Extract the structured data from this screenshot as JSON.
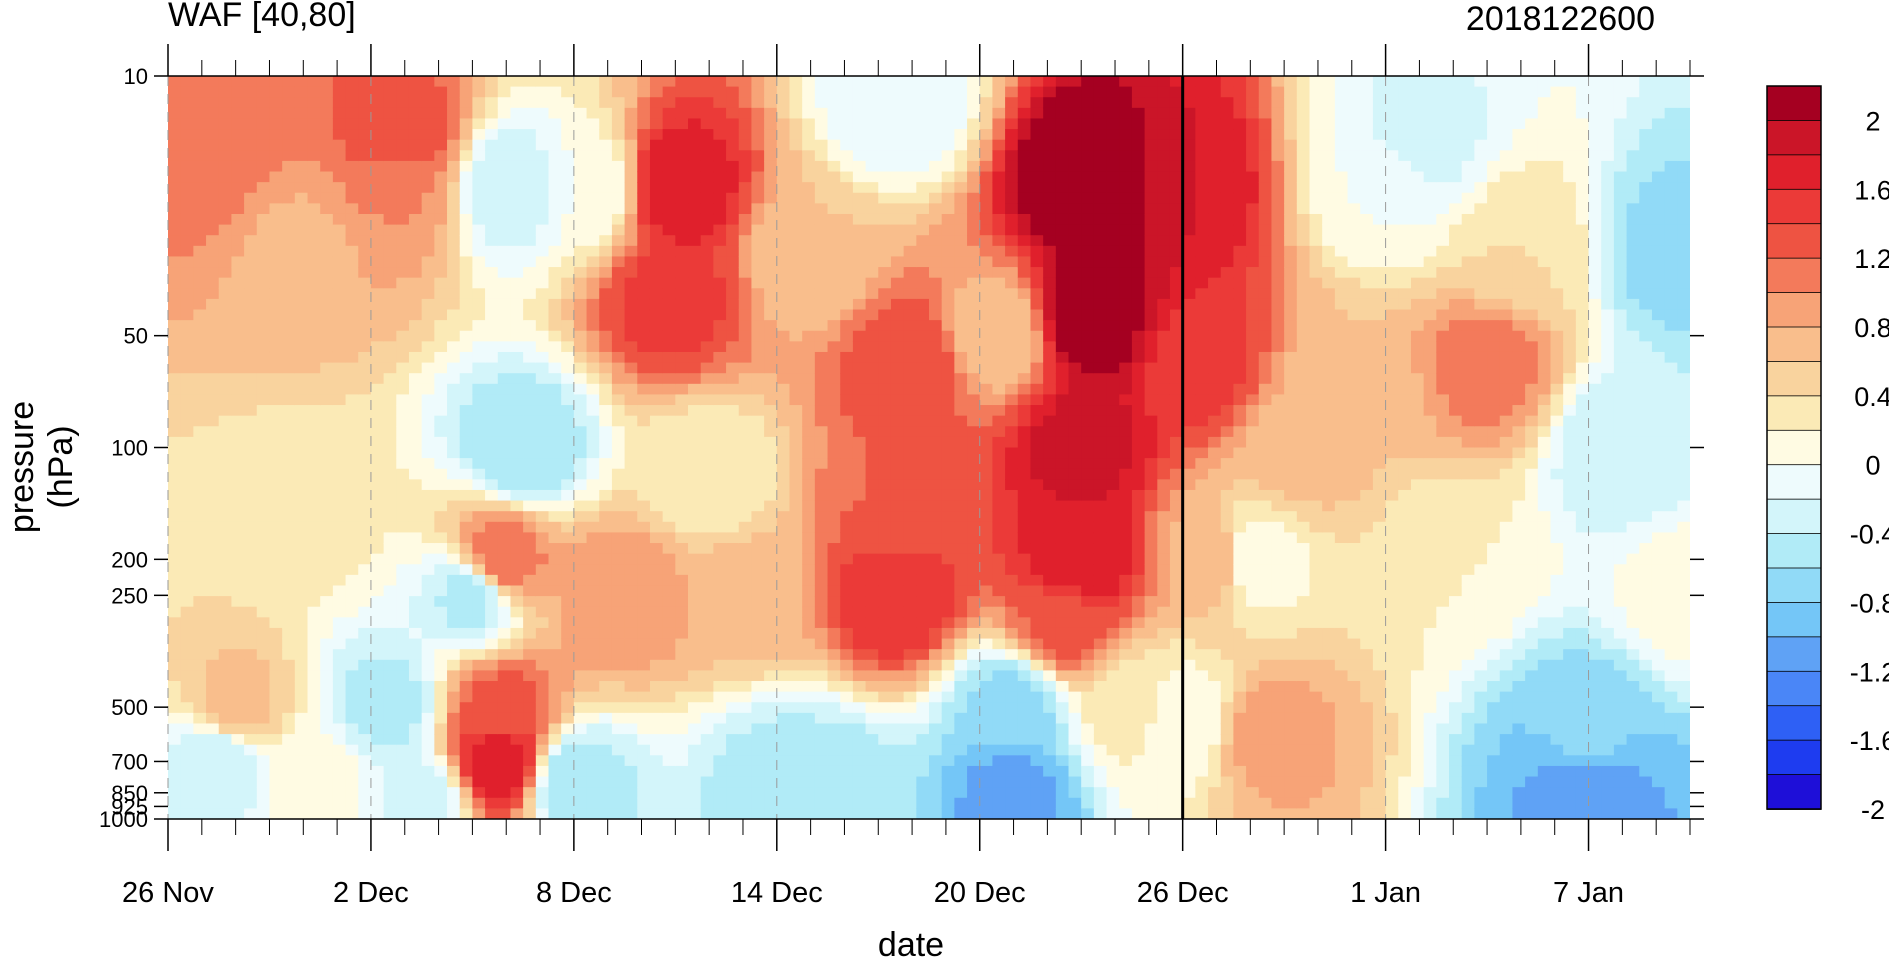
{
  "chart_data": {
    "type": "heatmap",
    "title": "WAF [40,80]",
    "subtitle": "2018122600",
    "xlabel": "date",
    "ylabel": "pressure (hPa)",
    "x_ticks": [
      "26 Nov",
      "2 Dec",
      "8 Dec",
      "14 Dec",
      "20 Dec",
      "26 Dec",
      "1 Jan",
      "7 Jan"
    ],
    "x_tick_days": [
      0,
      6,
      12,
      18,
      24,
      30,
      36,
      42
    ],
    "x_range_days": [
      0,
      45
    ],
    "y_ticks": [
      10,
      50,
      100,
      200,
      250,
      500,
      700,
      850,
      925,
      1000
    ],
    "y_scale": "log",
    "y_range": [
      1000,
      10
    ],
    "marker_day": 30,
    "colorbar": {
      "levels": [
        -2,
        -1.8,
        -1.6,
        -1.4,
        -1.2,
        -1,
        -0.8,
        -0.6,
        -0.4,
        -0.2,
        0,
        0.2,
        0.4,
        0.6,
        0.8,
        1,
        1.2,
        1.4,
        1.6,
        1.8,
        2
      ],
      "labels": [
        "2",
        "1.6",
        "1.2",
        "0.8",
        "0.4",
        "0",
        "-0.4",
        "-0.8",
        "-1.2",
        "-1.6",
        "-2"
      ],
      "colors": [
        "#1e0fd8",
        "#1e3cf0",
        "#2e60f5",
        "#4a86f7",
        "#5fa2f5",
        "#74c6f7",
        "#91daf7",
        "#b1ebf7",
        "#d3f5fa",
        "#eefbfd",
        "#fffbe3",
        "#fbeab6",
        "#f9d39e",
        "#f9be8c",
        "#f7a377",
        "#f37a5b",
        "#ee5342",
        "#eb3a38",
        "#e0202c",
        "#cb1528",
        "#a50021"
      ]
    },
    "grid_days": [
      1,
      2,
      3,
      4,
      5,
      7,
      8,
      9,
      10,
      11,
      13,
      14,
      15,
      16,
      17,
      19,
      20,
      21,
      22,
      23,
      25,
      26,
      27,
      28,
      29,
      31,
      32,
      33,
      34,
      35,
      37,
      38,
      39,
      40,
      41,
      43,
      44,
      45
    ],
    "field": [
      {
        "d": 1,
        "p": 15,
        "v": 1.0
      },
      {
        "d": 1.5,
        "p": 700,
        "v": -0.6
      },
      {
        "d": 2,
        "p": 500,
        "v": 0.5
      },
      {
        "d": 4,
        "p": 30,
        "v": 0.55
      },
      {
        "d": 4,
        "p": 150,
        "v": 0.1
      },
      {
        "d": 4.5,
        "p": 800,
        "v": -0.1
      },
      {
        "d": 7,
        "p": 20,
        "v": 0.8
      },
      {
        "d": 6.5,
        "p": 500,
        "v": -0.7
      },
      {
        "d": 7.5,
        "p": 900,
        "v": -0.5
      },
      {
        "d": 7,
        "p": 15,
        "v": 1.2
      },
      {
        "d": 10,
        "p": 20,
        "v": -0.6
      },
      {
        "d": 10.5,
        "p": 100,
        "v": -0.8
      },
      {
        "d": 9,
        "p": 250,
        "v": -0.7
      },
      {
        "d": 9.8,
        "p": 520,
        "v": 1.1
      },
      {
        "d": 9.8,
        "p": 700,
        "v": 1.6
      },
      {
        "d": 9.8,
        "p": 200,
        "v": 1.0
      },
      {
        "d": 12,
        "p": 800,
        "v": -0.8
      },
      {
        "d": 12.5,
        "p": 20,
        "v": -0.2
      },
      {
        "d": 13.5,
        "p": 250,
        "v": 0.8
      },
      {
        "d": 15,
        "p": 20,
        "v": 1.6
      },
      {
        "d": 14.8,
        "p": 40,
        "v": 1.3
      },
      {
        "d": 16,
        "p": 120,
        "v": 0.0
      },
      {
        "d": 17,
        "p": 250,
        "v": 0.5
      },
      {
        "d": 18,
        "p": 800,
        "v": -0.7
      },
      {
        "d": 19.5,
        "p": 850,
        "v": -0.8
      },
      {
        "d": 19,
        "p": 30,
        "v": 0.4
      },
      {
        "d": 21.5,
        "p": 150,
        "v": 1.0
      },
      {
        "d": 22,
        "p": 60,
        "v": 1.2
      },
      {
        "d": 21.5,
        "p": 12,
        "v": -0.4
      },
      {
        "d": 21.5,
        "p": 250,
        "v": 1.4
      },
      {
        "d": 25,
        "p": 500,
        "v": -0.9
      },
      {
        "d": 25,
        "p": 850,
        "v": -1.3
      },
      {
        "d": 24.5,
        "p": 50,
        "v": 0.4
      },
      {
        "d": 27.3,
        "p": 20,
        "v": 2.2
      },
      {
        "d": 27.3,
        "p": 45,
        "v": 2.0
      },
      {
        "d": 27,
        "p": 100,
        "v": 1.7
      },
      {
        "d": 27,
        "p": 200,
        "v": 1.6
      },
      {
        "d": 26.5,
        "p": 300,
        "v": 1.1
      },
      {
        "d": 28.5,
        "p": 500,
        "v": 0.1
      },
      {
        "d": 30,
        "p": 20,
        "v": 1.6
      },
      {
        "d": 30.5,
        "p": 60,
        "v": 1.3
      },
      {
        "d": 31,
        "p": 200,
        "v": 0.6
      },
      {
        "d": 30,
        "p": 550,
        "v": -0.2
      },
      {
        "d": 32,
        "p": 200,
        "v": -0.2
      },
      {
        "d": 32.5,
        "p": 600,
        "v": 0.7
      },
      {
        "d": 33.5,
        "p": 100,
        "v": 0.5
      },
      {
        "d": 35,
        "p": 70,
        "v": 0.4
      },
      {
        "d": 36,
        "p": 20,
        "v": -0.2
      },
      {
        "d": 37,
        "p": 15,
        "v": -0.5
      },
      {
        "d": 38,
        "p": 200,
        "v": 0.0
      },
      {
        "d": 39,
        "p": 60,
        "v": 0.9
      },
      {
        "d": 40,
        "p": 30,
        "v": 0.2
      },
      {
        "d": 42,
        "p": 800,
        "v": -1.4
      },
      {
        "d": 42,
        "p": 600,
        "v": -0.9
      },
      {
        "d": 43,
        "p": 100,
        "v": -0.6
      },
      {
        "d": 44.5,
        "p": 30,
        "v": -0.9
      },
      {
        "d": 45,
        "p": 250,
        "v": -0.1
      }
    ]
  }
}
